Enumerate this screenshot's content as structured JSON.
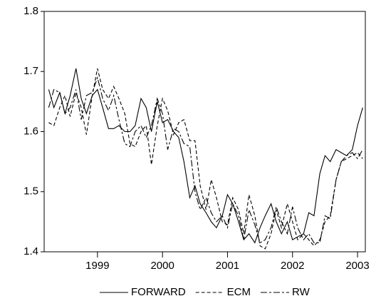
{
  "chart_data": {
    "type": "line",
    "x": [
      1998.25,
      1998.33,
      1998.42,
      1998.5,
      1998.58,
      1998.67,
      1998.75,
      1998.83,
      1998.92,
      1999,
      1999.08,
      1999.17,
      1999.25,
      1999.33,
      1999.42,
      1999.5,
      1999.58,
      1999.67,
      1999.75,
      1999.83,
      1999.92,
      2000,
      2000.08,
      2000.17,
      2000.25,
      2000.33,
      2000.42,
      2000.5,
      2000.58,
      2000.67,
      2000.75,
      2000.83,
      2000.92,
      2001,
      2001.08,
      2001.17,
      2001.25,
      2001.33,
      2001.42,
      2001.5,
      2001.58,
      2001.67,
      2001.75,
      2001.83,
      2001.92,
      2002,
      2002.08,
      2002.17,
      2002.25,
      2002.33,
      2002.42,
      2002.5,
      2002.58,
      2002.67,
      2002.75,
      2002.83,
      2002.92,
      2003,
      2003.08
    ],
    "series": [
      {
        "name": "FORWARD",
        "color": "#000000",
        "dash": "none",
        "values": [
          1.67,
          1.64,
          1.665,
          1.63,
          1.66,
          1.705,
          1.655,
          1.63,
          1.66,
          1.67,
          1.64,
          1.605,
          1.605,
          1.61,
          1.6,
          1.6,
          1.61,
          1.655,
          1.64,
          1.6,
          1.65,
          1.615,
          1.62,
          1.6,
          1.59,
          1.55,
          1.49,
          1.51,
          1.48,
          1.465,
          1.45,
          1.44,
          1.46,
          1.495,
          1.48,
          1.45,
          1.42,
          1.43,
          1.415,
          1.44,
          1.46,
          1.48,
          1.45,
          1.43,
          1.45,
          1.42,
          1.425,
          1.43,
          1.465,
          1.46,
          1.53,
          1.56,
          1.55,
          1.57,
          1.565,
          1.56,
          1.57,
          1.61,
          1.64
        ]
      },
      {
        "name": "ECM",
        "color": "#000000",
        "dash": "5,3",
        "values": [
          1.615,
          1.61,
          1.64,
          1.66,
          1.625,
          1.665,
          1.64,
          1.595,
          1.66,
          1.705,
          1.67,
          1.655,
          1.675,
          1.655,
          1.63,
          1.58,
          1.575,
          1.6,
          1.61,
          1.545,
          1.61,
          1.655,
          1.635,
          1.595,
          1.615,
          1.62,
          1.585,
          1.585,
          1.51,
          1.47,
          1.52,
          1.49,
          1.45,
          1.445,
          1.49,
          1.47,
          1.43,
          1.495,
          1.46,
          1.41,
          1.405,
          1.43,
          1.47,
          1.44,
          1.48,
          1.45,
          1.42,
          1.43,
          1.42,
          1.41,
          1.42,
          1.45,
          1.46,
          1.52,
          1.55,
          1.555,
          1.56,
          1.565,
          1.555
        ]
      },
      {
        "name": "RW",
        "color": "#000000",
        "dash": "9,3,3,3",
        "values": [
          1.64,
          1.67,
          1.665,
          1.63,
          1.64,
          1.67,
          1.62,
          1.66,
          1.665,
          1.69,
          1.655,
          1.635,
          1.66,
          1.62,
          1.58,
          1.575,
          1.6,
          1.61,
          1.59,
          1.61,
          1.655,
          1.63,
          1.57,
          1.605,
          1.6,
          1.58,
          1.575,
          1.5,
          1.47,
          1.49,
          1.465,
          1.45,
          1.46,
          1.44,
          1.48,
          1.46,
          1.42,
          1.47,
          1.445,
          1.415,
          1.42,
          1.44,
          1.475,
          1.45,
          1.43,
          1.475,
          1.44,
          1.42,
          1.43,
          1.415,
          1.415,
          1.46,
          1.455,
          1.52,
          1.55,
          1.56,
          1.565,
          1.555,
          1.57
        ]
      }
    ],
    "xlim": [
      1998.18,
      2003.12
    ],
    "xticks": [
      1999,
      2000,
      2001,
      2002,
      2003
    ],
    "ylim": [
      1.4,
      1.8
    ],
    "yticks": [
      1.4,
      1.5,
      1.6,
      1.7,
      1.8
    ],
    "grid": false,
    "legend": "bottom"
  }
}
